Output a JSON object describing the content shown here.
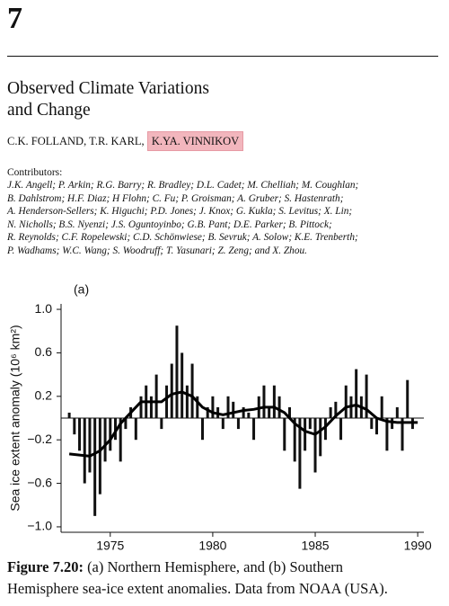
{
  "chapter": "7",
  "title": [
    "Observed Climate Variations",
    "and Change"
  ],
  "authors": [
    "C.K. FOLLAND,",
    "T.R. KARL,",
    "K.YA. VINNIKOV"
  ],
  "contributors": {
    "heading": "Contributors:",
    "lines": [
      "J.K. Angell; P. Arkin; R.G. Barry; R. Bradley; D.L. Cadet; M. Chelliah; M. Coughlan;",
      "B. Dahlstrom; H.F. Diaz; H Flohn; C. Fu; P. Groisman; A. Gruber; S. Hastenrath;",
      "A. Henderson-Sellers; K. Higuchi; P.D. Jones; J. Knox; G. Kukla; S. Levitus; X. Lin;",
      "N. Nicholls; B.S. Nyenzi; J.S. Oguntoyinbo; G.B. Pant; D.E. Parker; B. Pittock;",
      "R. Reynolds; C.F. Ropelewski; C.D. Schönwiese; B. Sevruk; A. Solow; K.E. Trenberth;",
      "P. Wadhams; W.C. Wang; S. Woodruff; T. Yasunari; Z. Zeng; and X. Zhou."
    ]
  },
  "chart_data": {
    "type": "bar",
    "panel_label": "(a)",
    "ylabel": "Sea ice extent anomaly (10⁶ km²)",
    "x": [
      1973,
      1973.25,
      1973.5,
      1973.75,
      1974,
      1974.25,
      1974.5,
      1974.75,
      1975,
      1975.25,
      1975.5,
      1975.75,
      1976,
      1976.25,
      1976.5,
      1976.75,
      1977,
      1977.25,
      1977.5,
      1977.75,
      1978,
      1978.25,
      1978.5,
      1978.75,
      1979,
      1979.25,
      1979.5,
      1979.75,
      1980,
      1980.25,
      1980.5,
      1980.75,
      1981,
      1981.25,
      1981.5,
      1981.75,
      1982,
      1982.25,
      1982.5,
      1982.75,
      1983,
      1983.25,
      1983.5,
      1983.75,
      1984,
      1984.25,
      1984.5,
      1984.75,
      1985,
      1985.25,
      1985.5,
      1985.75,
      1986,
      1986.25,
      1986.5,
      1986.75,
      1987,
      1987.25,
      1987.5,
      1987.75,
      1988,
      1988.25,
      1988.5,
      1988.75,
      1989,
      1989.25,
      1989.5,
      1989.75
    ],
    "values": [
      0.05,
      -0.15,
      -0.3,
      -0.6,
      -0.5,
      -0.9,
      -0.7,
      -0.4,
      -0.3,
      -0.2,
      -0.4,
      -0.1,
      0.1,
      -0.2,
      0.2,
      0.3,
      0.2,
      0.4,
      -0.1,
      0.3,
      0.5,
      0.85,
      0.6,
      0.3,
      0.5,
      0.2,
      -0.2,
      0.1,
      0.2,
      0.1,
      -0.1,
      0.2,
      0.15,
      -0.1,
      0.1,
      0.05,
      -0.2,
      0.2,
      0.3,
      0.1,
      0.3,
      0.2,
      -0.3,
      0.1,
      -0.4,
      -0.65,
      -0.3,
      -0.1,
      -0.5,
      -0.35,
      -0.2,
      0.1,
      0.15,
      -0.2,
      0.3,
      0.2,
      0.45,
      0.2,
      0.4,
      -0.1,
      -0.15,
      0.2,
      -0.3,
      -0.1,
      0.1,
      -0.3,
      0.35,
      -0.1
    ],
    "color": "#111111",
    "trend": {
      "type": "line",
      "color": "#000000",
      "x": [
        1973,
        1974,
        1974.5,
        1975,
        1975.5,
        1976,
        1976.5,
        1977,
        1977.5,
        1978,
        1978.5,
        1979,
        1979.5,
        1980,
        1980.5,
        1981,
        1981.5,
        1982,
        1982.5,
        1983,
        1983.5,
        1984,
        1984.5,
        1985,
        1985.5,
        1986,
        1986.5,
        1987,
        1987.5,
        1988,
        1988.5,
        1989,
        1990
      ],
      "values": [
        -0.33,
        -0.35,
        -0.3,
        -0.2,
        -0.05,
        0.05,
        0.15,
        0.15,
        0.15,
        0.22,
        0.24,
        0.2,
        0.1,
        0.05,
        0.03,
        0.05,
        0.07,
        0.08,
        0.1,
        0.1,
        0.05,
        -0.05,
        -0.12,
        -0.15,
        -0.08,
        0.02,
        0.1,
        0.12,
        0.08,
        0,
        -0.03,
        -0.04,
        -0.04
      ]
    },
    "xlim": [
      1972.6,
      1990.3
    ],
    "xticks": [
      1975,
      1980,
      1985,
      1990
    ],
    "ylim": [
      -1.05,
      1.05
    ],
    "yticks": [
      {
        "value": 1,
        "label": "1.0"
      },
      0.6,
      0.2,
      {
        "value": -0.2,
        "label": "−0.2"
      },
      {
        "value": -0.6,
        "label": "−0.6"
      },
      {
        "value": -1,
        "label": "−1.0"
      }
    ]
  },
  "caption": {
    "label": "Figure 7.20:",
    "lines": [
      " (a)  Northern Hemisphere, and  (b) Southern",
      "Hemisphere sea-ice extent anomalies.  Data from NOAA (USA)."
    ]
  }
}
